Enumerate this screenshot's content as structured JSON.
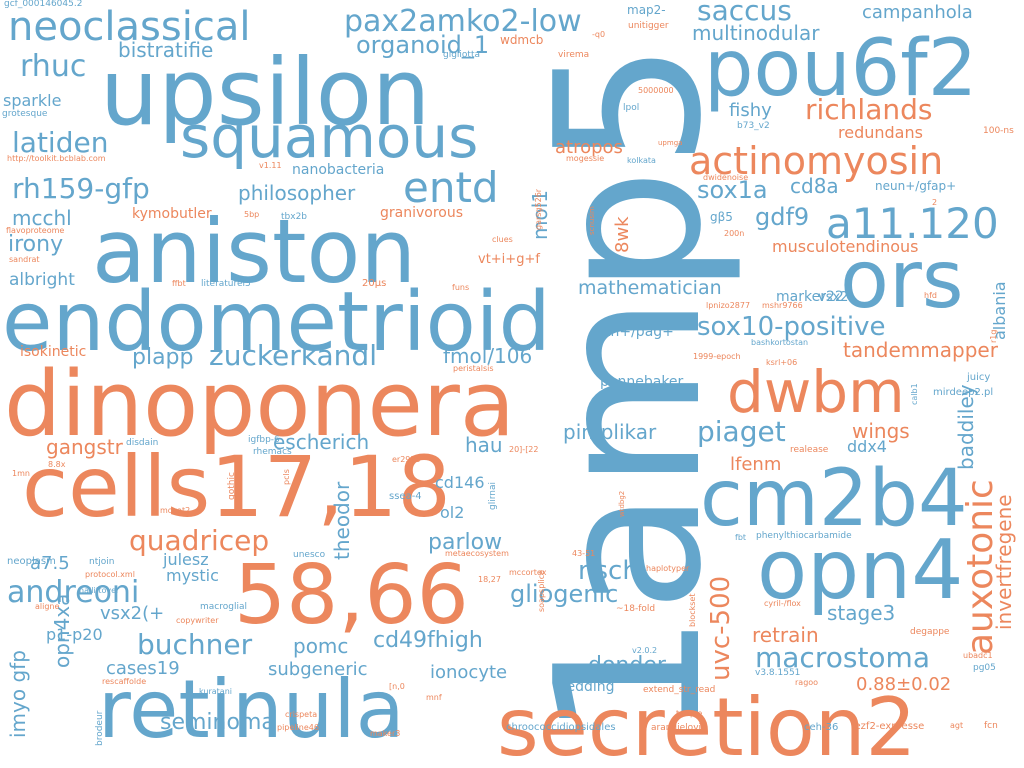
{
  "palette": {
    "blue": "#64a6cc",
    "orange": "#ec875d",
    "background": "#ffffff"
  },
  "words": [
    "1amp5",
    "upsilon",
    "aniston",
    "endometrioid",
    "dinoponera",
    "cells17,18",
    "58,66",
    "retinula",
    "secretion2",
    "cm2b4",
    "opn4",
    "ors",
    "pou6f2",
    "dwbm",
    "squamous",
    "auxotonic",
    "a11.120",
    "neoclassical",
    "actinomyosin",
    "pax2amko2-low",
    "entd",
    "rh159-gfp",
    "latiden",
    "rhuc",
    "organoid_1",
    "saccus",
    "richlands",
    "zuckerkandl",
    "andreoni",
    "buchner",
    "quadricep",
    "seminoma",
    "uvc-500",
    "macrostoma",
    "piaget",
    "mathematician",
    "sox10-positive",
    "nschl",
    "gliogenic",
    "invertfregene",
    "tandemmapper",
    "sox1a",
    "gdf9",
    "cd8a",
    "bistratifie",
    "campanhola",
    "multinodular",
    "philosopher",
    "mcchl",
    "irony",
    "albright",
    "plapp",
    "fmol/106",
    "gangstr",
    "escherich",
    "theodor",
    "parlow",
    "pimplikar",
    "donder",
    "stage3",
    "retrain",
    "cd49fhigh",
    "pomc",
    "subgeneric",
    "ionocyte",
    "cases19",
    "opn4xa",
    "imyo gfp",
    "vsx2(+",
    "p1-p20",
    "a7.5",
    "mystic",
    "julesz",
    "wedding",
    "0.88±0.02",
    "lfenm",
    "wings",
    "baddiley",
    "albania",
    "ddx4",
    "hau",
    "cd146",
    "ol2",
    "atropos",
    "8wk",
    "mol1",
    "fishy",
    "redundans",
    "musculotendinous",
    "marker22",
    "vsx2",
    "th+/pag+",
    "pennebaker",
    "kymobutler",
    "granivorous",
    "nanobacteria",
    "sparkle",
    "vt+i+g+f",
    "wdmcb",
    "map2-",
    "gcf_000146045.2",
    "-q0",
    "unitigger",
    "gigliotta",
    "virema",
    "grotesque",
    "http://toolkit.bcblab.com",
    "v1.11",
    "upmga",
    "b73_v2",
    "100-ns",
    "5000000",
    "lpol",
    "mogessie",
    "kolkata",
    "dwidenoise",
    "neun+/gfap+",
    "gβ5",
    "2",
    "200n",
    "flavoproteome",
    "5bp",
    "tbx2b",
    "garsg526r",
    "scnusim",
    "clues",
    "sandrat",
    "ffbt",
    "literaturel5",
    "20μs",
    "funs",
    "hfd",
    "lpnizo2877",
    "mshr9766",
    "bashkortostan",
    "1999-epoch",
    "ksrl+06",
    "r1g",
    "isokinetic",
    "peristalsis",
    "juicy",
    "mirdeep2.pl",
    "calb1",
    "igfbp-6",
    "disdain",
    "rhemacs",
    "er2925",
    "20]-[22",
    "realease",
    "glirnai",
    "1mn",
    "8.8x",
    "pcls",
    "gothic",
    "ssea-4",
    "mocat2",
    "wtdbg2",
    "fbt",
    "phenylthiocarbamide",
    "neoplasm",
    "ntjoin",
    "protocol.xml",
    "unesco",
    "metaecosystem",
    "43-51",
    "haplotyper",
    "aligne",
    "halliftover",
    "18,27",
    "mccortex",
    "soapsplice",
    "copywriter",
    "macroglial",
    "kuratani",
    "cyril-/flox",
    "~18-fold",
    "blockset",
    "degappe",
    "ubadc1",
    "v2.0.2",
    "v3.8.1551",
    "pg05",
    "rescaffolde",
    "ragoo",
    "extend_str_read",
    "[n,0",
    "mnf",
    "brodeur",
    "crispeta",
    "pipeline46",
    "maker3",
    "chroococcidiopsidales",
    "torque",
    "arandjelovic",
    "ceh-36",
    "fezf2-expresse",
    "agt",
    "fcn"
  ]
}
